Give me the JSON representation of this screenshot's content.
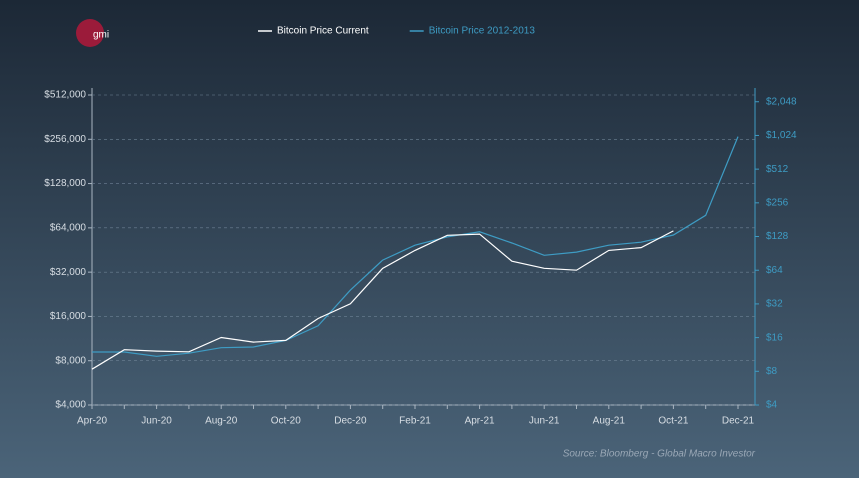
{
  "chart_data": {
    "type": "line",
    "logo": "gmi",
    "source": "Source: Bloomberg - Global Macro Investor",
    "categories": [
      "Apr-20",
      null,
      "Jun-20",
      null,
      "Aug-20",
      null,
      "Oct-20",
      null,
      "Dec-20",
      null,
      "Feb-21",
      null,
      "Apr-21",
      null,
      "Jun-21",
      null,
      "Aug-21",
      null,
      "Oct-21",
      null,
      "Dec-21"
    ],
    "series": [
      {
        "name": "Bitcoin Price Current",
        "color": "#ffffff",
        "values": [
          7000,
          9500,
          9300,
          9200,
          11500,
          10700,
          11000,
          15500,
          19500,
          34000,
          45000,
          57000,
          58000,
          38000,
          34000,
          33000,
          45000,
          47000,
          61000,
          null,
          null
        ]
      },
      {
        "name": "Bitcoin Price 2012-2013",
        "color": "#3e9cc4",
        "axis": "y2",
        "values": [
          11.9,
          11.9,
          10.9,
          11.6,
          13,
          13.2,
          15.1,
          20.4,
          42.5,
          78.8,
          107,
          127,
          141,
          112,
          87,
          93,
          107,
          114,
          132,
          198,
          1000
        ]
      }
    ],
    "log_scale": true,
    "grid": true,
    "ylim": [
      4000,
      512000
    ],
    "yticks": [
      {
        "value": 4000,
        "label": "$4,000"
      },
      {
        "value": 8000,
        "label": "$8,000"
      },
      {
        "value": 16000,
        "label": "$16,000"
      },
      {
        "value": 32000,
        "label": "$32,000"
      },
      {
        "value": 64000,
        "label": "$64,000"
      },
      {
        "value": 128000,
        "label": "$128,000"
      },
      {
        "value": 256000,
        "label": "$256,000"
      },
      {
        "value": 512000,
        "label": "$512,000"
      }
    ],
    "y2lim": [
      4,
      2353
    ],
    "y2ticks": [
      {
        "value": 4,
        "label": "$4"
      },
      {
        "value": 8,
        "label": "$8"
      },
      {
        "value": 16,
        "label": "$16"
      },
      {
        "value": 32,
        "label": "$32"
      },
      {
        "value": 64,
        "label": "$64"
      },
      {
        "value": 128,
        "label": "$128"
      },
      {
        "value": 256,
        "label": "$256"
      },
      {
        "value": 512,
        "label": "$512"
      },
      {
        "value": 1024,
        "label": "$1,024"
      },
      {
        "value": 2048,
        "label": "$2,048"
      }
    ]
  }
}
